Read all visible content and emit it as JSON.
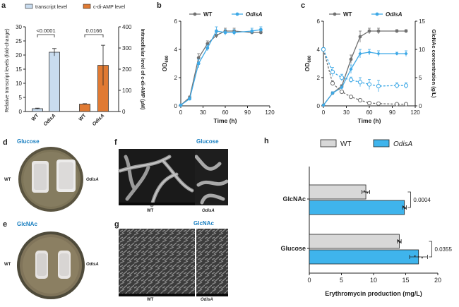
{
  "panels": {
    "a": "a",
    "b": "b",
    "c": "c",
    "d": "d",
    "e": "e",
    "f": "f",
    "g": "g",
    "h": "h"
  },
  "photos": {
    "d": {
      "title": "Glucose",
      "left": "WT",
      "right": "OdisA"
    },
    "e": {
      "title": "GlcNAc",
      "left": "WT",
      "right": "OdisA"
    },
    "f": {
      "title": "Glucose",
      "left": "WT",
      "right": "OdisA"
    },
    "g": {
      "title": "GlcNAc",
      "left": "WT",
      "right": "OdisA"
    }
  },
  "chart_data": [
    {
      "id": "a",
      "type": "bar",
      "legend": [
        "transcript level",
        "c-di-AMP level"
      ],
      "colors": {
        "transcript": "#c9dcef",
        "cdiamp": "#e07a33",
        "edge": "#333333"
      },
      "categories": [
        "WT",
        "OdisA",
        "WT",
        "OdisA"
      ],
      "left_axis": {
        "label": "Relative transcript levels (fold-change)",
        "ticks": [
          0,
          5,
          10,
          15,
          20,
          25,
          30
        ],
        "ylim": [
          0,
          30
        ]
      },
      "right_axis": {
        "label": "Intracellular level of c-di-AMP (μM)",
        "ticks": [
          0,
          100,
          200,
          300,
          400
        ],
        "ylim": [
          0,
          400
        ]
      },
      "series": [
        {
          "name": "transcript level",
          "axis": "left",
          "values": [
            {
              "cat": "WT",
              "value": 1.0,
              "err": 0.2
            },
            {
              "cat": "OdisA",
              "value": 21,
              "err": 1.3
            }
          ]
        },
        {
          "name": "c-di-AMP level",
          "axis": "right",
          "values": [
            {
              "cat": "WT",
              "value": 35,
              "err": 2
            },
            {
              "cat": "OdisA",
              "value": 218,
              "err": 95
            }
          ]
        }
      ],
      "annotations": [
        "<0.0001",
        "0.0166"
      ]
    },
    {
      "id": "b",
      "type": "line",
      "xlabel": "Time (h)",
      "ylabel": "OD600",
      "ylabel_main": "OD",
      "ylabel_sub": "600",
      "xlim": [
        0,
        120
      ],
      "ylim": [
        0,
        6
      ],
      "xticks": [
        0,
        30,
        60,
        90,
        120
      ],
      "yticks": [
        0,
        2,
        4,
        6
      ],
      "series": [
        {
          "name": "WT",
          "color": "#707070",
          "x": [
            0,
            12,
            24,
            36,
            48,
            60,
            72,
            96,
            108
          ],
          "y": [
            0.05,
            0.6,
            3.4,
            4.4,
            5.0,
            5.3,
            5.3,
            5.2,
            5.2
          ],
          "err": [
            0.05,
            0.1,
            0.3,
            0.2,
            0.2,
            0.2,
            0.2,
            0.1,
            0.1
          ]
        },
        {
          "name": "OdisA",
          "color": "#3fa9e6",
          "x": [
            0,
            12,
            24,
            36,
            48,
            60,
            72,
            96,
            108
          ],
          "y": [
            0.05,
            0.5,
            3.0,
            4.1,
            5.3,
            5.2,
            5.2,
            5.3,
            5.4
          ],
          "err": [
            0.05,
            0.1,
            0.3,
            0.2,
            0.3,
            0.2,
            0.2,
            0.2,
            0.2
          ]
        }
      ]
    },
    {
      "id": "c",
      "type": "line",
      "xlabel": "Time (h)",
      "ylabel": "OD600",
      "ylabel_main": "OD",
      "ylabel_sub": "600",
      "y2label": "GlcNAc concentration (g/L)",
      "xlim": [
        0,
        120
      ],
      "ylim": [
        0,
        6
      ],
      "y2lim": [
        0,
        15
      ],
      "xticks": [
        0,
        30,
        60,
        90,
        120
      ],
      "yticks": [
        0,
        2,
        4,
        6
      ],
      "y2ticks": [
        0,
        5,
        10,
        15
      ],
      "series": [
        {
          "name": "WT",
          "color": "#707070",
          "axis": "left",
          "style": "solid",
          "marker": "filled",
          "x": [
            0,
            12,
            24,
            36,
            48,
            60,
            72,
            96,
            108
          ],
          "y": [
            0.05,
            0.9,
            1.4,
            3.3,
            4.9,
            5.3,
            5.3,
            5.3,
            5.3
          ],
          "err": [
            0.05,
            0.1,
            0.1,
            0.3,
            0.4,
            0.2,
            0.2,
            0.1,
            0.1
          ]
        },
        {
          "name": "OdisA",
          "color": "#3fa9e6",
          "axis": "left",
          "style": "solid",
          "marker": "filled",
          "x": [
            0,
            12,
            24,
            36,
            48,
            60,
            72,
            96,
            108
          ],
          "y": [
            0.05,
            0.9,
            1.3,
            2.6,
            3.7,
            3.8,
            3.7,
            3.7,
            3.7
          ],
          "err": [
            0.05,
            0.1,
            0.1,
            0.3,
            0.3,
            0.2,
            0.2,
            0.1,
            0.2
          ]
        },
        {
          "name": "WT GlcNAc",
          "color": "#707070",
          "axis": "right",
          "style": "dashed",
          "marker": "open",
          "x": [
            0,
            12,
            24,
            36,
            48,
            60,
            72,
            96,
            108
          ],
          "y": [
            10.0,
            4.0,
            2.5,
            1.6,
            1.0,
            0.5,
            0.4,
            0.3,
            0.3
          ],
          "err": [
            0.3,
            0.4,
            0.3,
            0.2,
            0.2,
            0.1,
            0.1,
            0.1,
            0.1
          ]
        },
        {
          "name": "OdisA GlcNAc",
          "color": "#3fa9e6",
          "axis": "right",
          "style": "dashed",
          "marker": "open",
          "x": [
            0,
            12,
            24,
            36,
            48,
            60,
            72,
            96,
            108
          ],
          "y": [
            10.0,
            6.0,
            5.0,
            4.6,
            4.2,
            3.8,
            3.5,
            3.6,
            3.6
          ],
          "err": [
            0.3,
            0.8,
            0.6,
            0.5,
            0.8,
            0.9,
            1.0,
            0.5,
            0.5
          ]
        }
      ],
      "legend": [
        "WT",
        "OdisA"
      ]
    },
    {
      "id": "h",
      "type": "bar",
      "orientation": "horizontal",
      "xlabel": "Erythromycin production (mg/L)",
      "xlim": [
        0,
        20
      ],
      "xticks": [
        0,
        5,
        10,
        15,
        20
      ],
      "categories": [
        "GlcNAc",
        "Glucose"
      ],
      "legend": [
        "WT",
        "OdisA"
      ],
      "series": [
        {
          "name": "WT",
          "color": "#d8d8d8",
          "values": [
            8.8,
            14.0
          ],
          "err": [
            0.6,
            0.3
          ]
        },
        {
          "name": "OdisA",
          "color": "#3fb4ec",
          "values": [
            14.8,
            17.0
          ],
          "err": [
            0.3,
            1.4
          ]
        }
      ],
      "annotations": [
        "0.0004",
        "0.0355"
      ]
    }
  ]
}
